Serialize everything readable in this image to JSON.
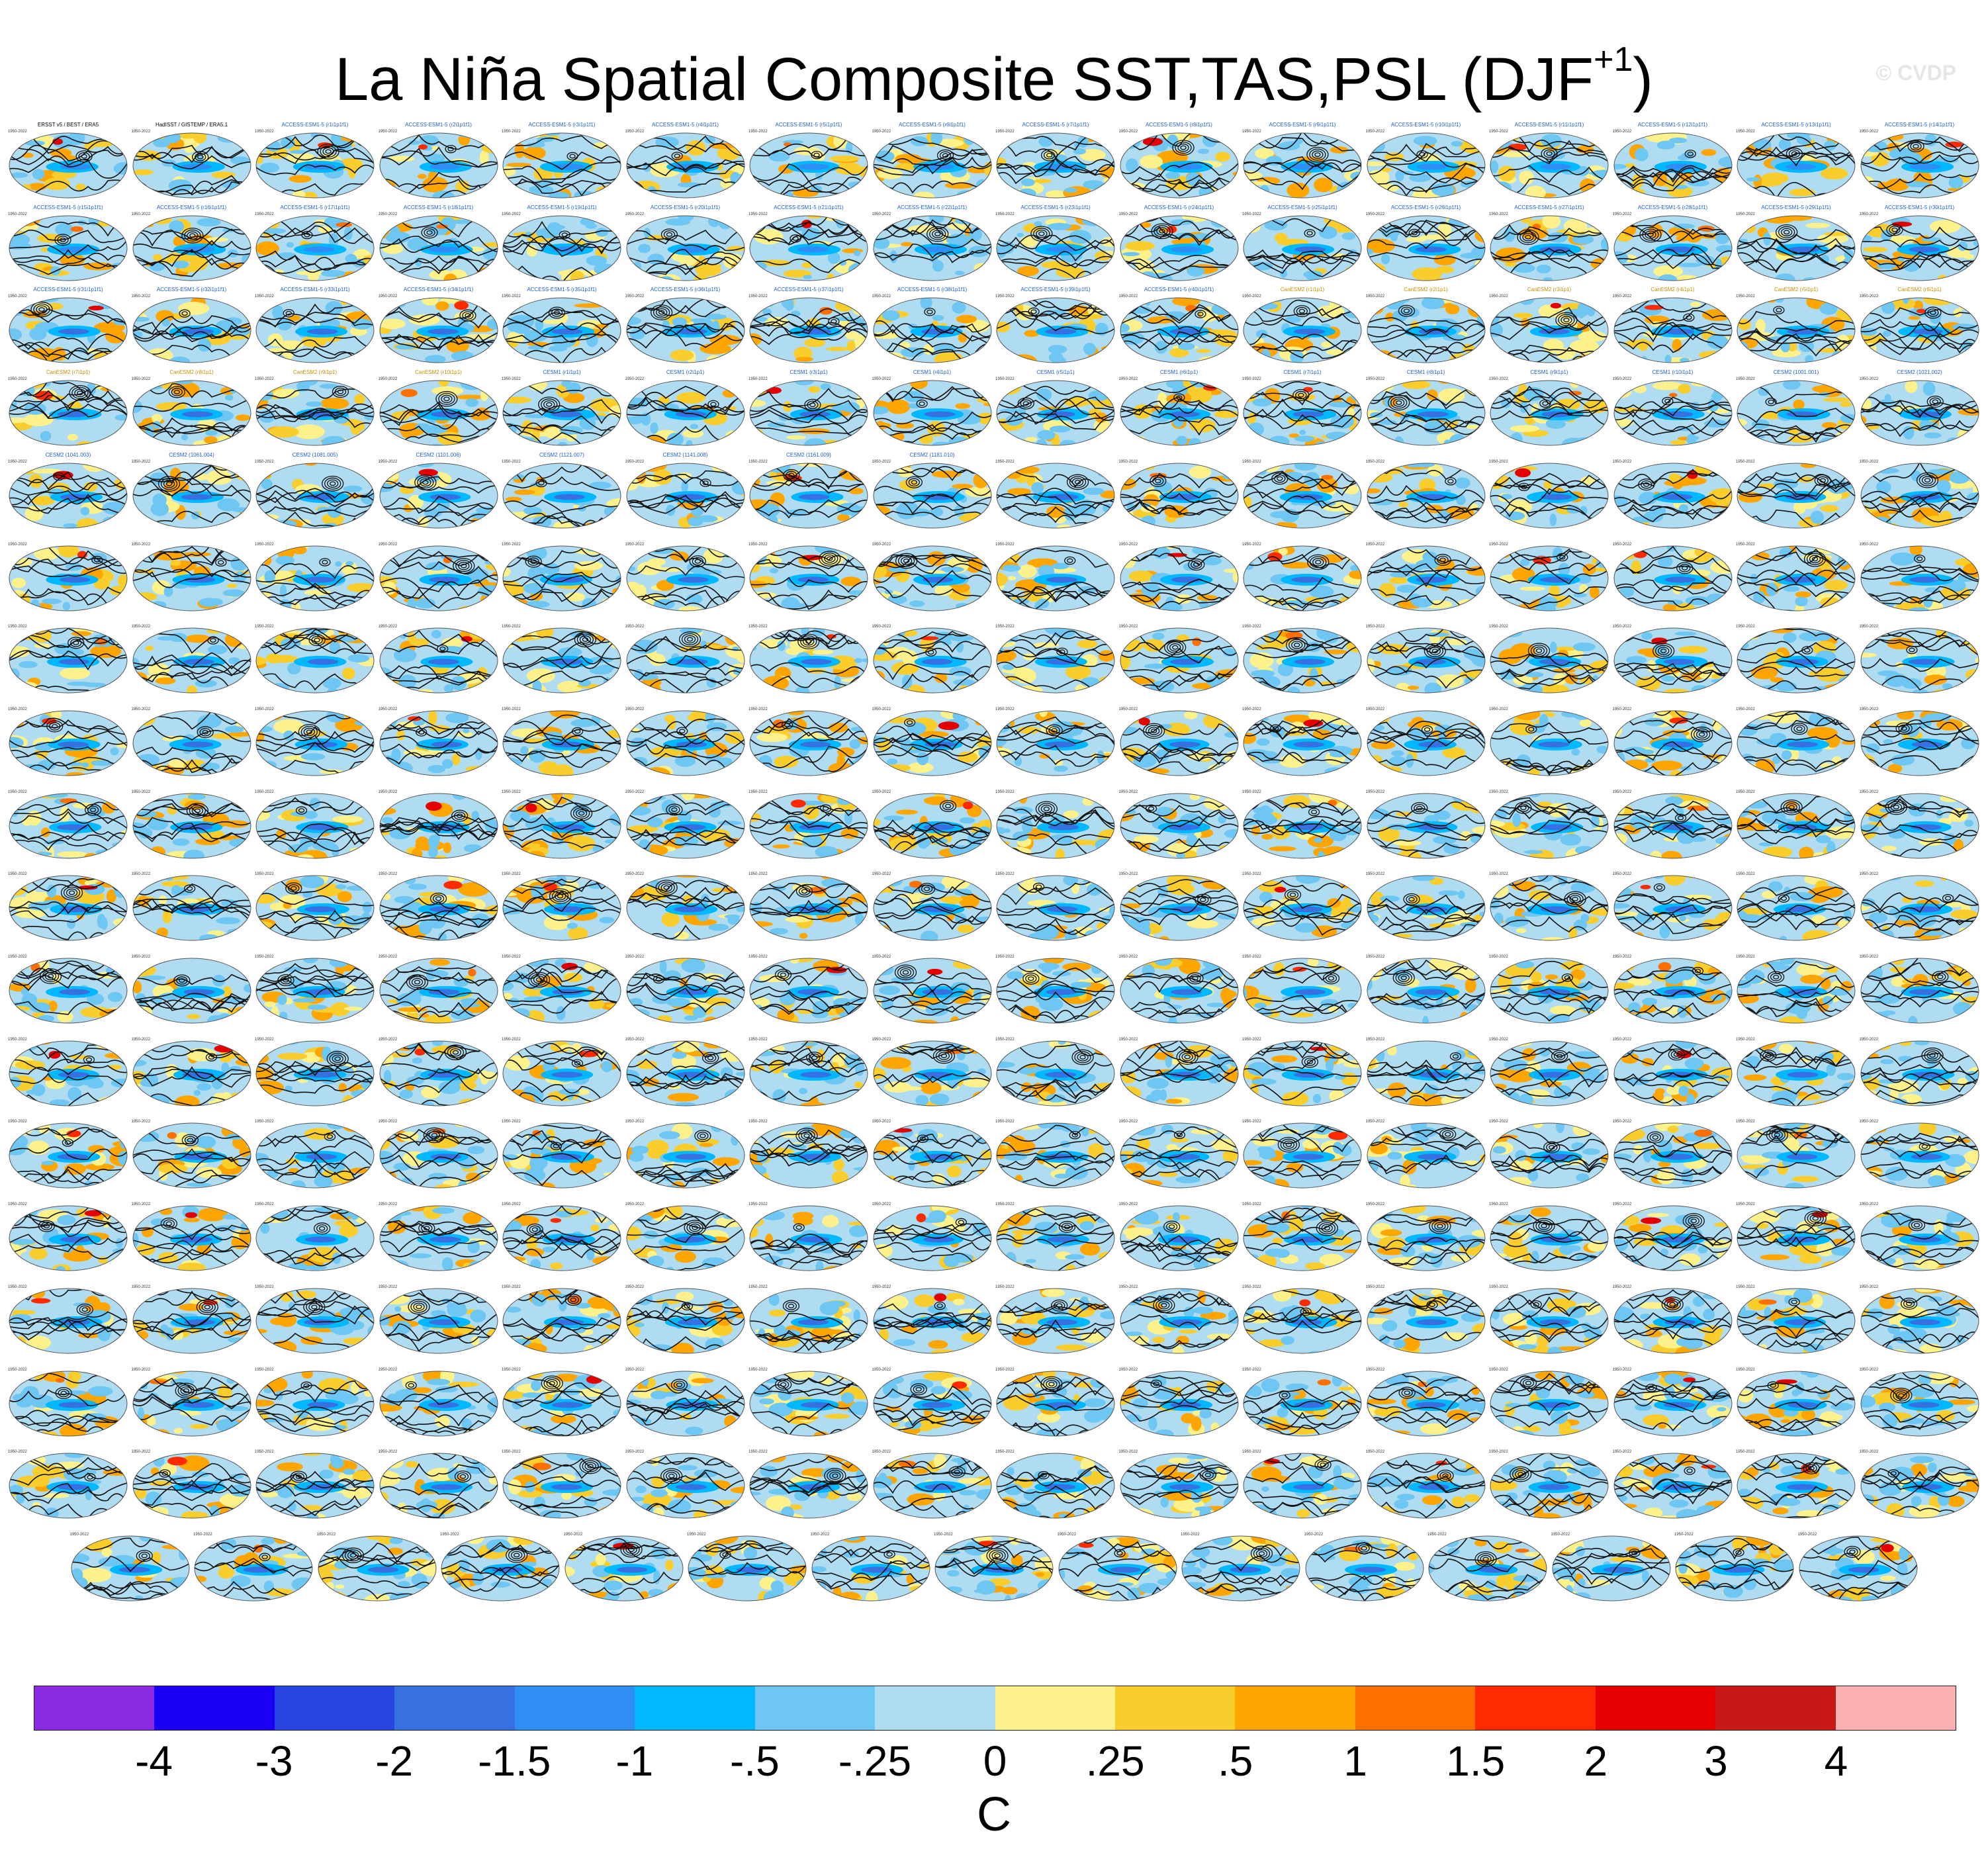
{
  "chart_data": {
    "type": "heatmap",
    "title": "La Niña Spatial Composite SST,TAS,PSL (DJF",
    "title_superscript": "+1",
    "title_suffix": ")",
    "watermark": "© CVDP",
    "variables": [
      "SST",
      "TAS",
      "PSL"
    ],
    "season": "DJF+1",
    "panel_rows": 18,
    "panels_per_full_row": 16,
    "last_row_panels": 15,
    "panel_year_range": "1950-2022",
    "panels": [
      "ERSST v5 / BEST / ERA5",
      "HadISST / GISTEMP / ERA5.1",
      "ACCESS-ESM1-5 (r1i1p1f1)",
      "ACCESS-ESM1-5 (r2i1p1f1)",
      "ACCESS-ESM1-5 (r3i1p1f1)",
      "ACCESS-ESM1-5 (r4i1p1f1)",
      "ACCESS-ESM1-5 (r5i1p1f1)",
      "ACCESS-ESM1-5 (r6i1p1f1)",
      "ACCESS-ESM1-5 (r7i1p1f1)",
      "ACCESS-ESM1-5 (r8i1p1f1)",
      "ACCESS-ESM1-5 (r9i1p1f1)",
      "ACCESS-ESM1-5 (r10i1p1f1)",
      "ACCESS-ESM1-5 (r11i1p1f1)",
      "ACCESS-ESM1-5 (r12i1p1f1)",
      "ACCESS-ESM1-5 (r13i1p1f1)",
      "ACCESS-ESM1-5 (r14i1p1f1)",
      "ACCESS-ESM1-5 (r15i1p1f1)",
      "ACCESS-ESM1-5 (r16i1p1f1)",
      "ACCESS-ESM1-5 (r17i1p1f1)",
      "ACCESS-ESM1-5 (r18i1p1f1)",
      "ACCESS-ESM1-5 (r19i1p1f1)",
      "ACCESS-ESM1-5 (r20i1p1f1)",
      "ACCESS-ESM1-5 (r21i1p1f1)",
      "ACCESS-ESM1-5 (r22i1p1f1)",
      "ACCESS-ESM1-5 (r23i1p1f1)",
      "ACCESS-ESM1-5 (r24i1p1f1)",
      "ACCESS-ESM1-5 (r25i1p1f1)",
      "ACCESS-ESM1-5 (r26i1p1f1)",
      "ACCESS-ESM1-5 (r27i1p1f1)",
      "ACCESS-ESM1-5 (r28i1p1f1)",
      "ACCESS-ESM1-5 (r29i1p1f1)",
      "ACCESS-ESM1-5 (r30i1p1f1)",
      "ACCESS-ESM1-5 (r31i1p1f1)",
      "ACCESS-ESM1-5 (r32i1p1f1)",
      "ACCESS-ESM1-5 (r33i1p1f1)",
      "ACCESS-ESM1-5 (r34i1p1f1)",
      "ACCESS-ESM1-5 (r35i1p1f1)",
      "ACCESS-ESM1-5 (r36i1p1f1)",
      "ACCESS-ESM1-5 (r37i1p1f1)",
      "ACCESS-ESM1-5 (r38i1p1f1)",
      "ACCESS-ESM1-5 (r39i1p1f1)",
      "ACCESS-ESM1-5 (r40i1p1f1)",
      "CanESM2 (r1i1p1)",
      "CanESM2 (r2i1p1)",
      "CanESM2 (r3i1p1)",
      "CanESM2 (r4i1p1)",
      "CanESM2 (r5i1p1)",
      "CanESM2 (r6i1p1)",
      "CanESM2 (r7i1p1)",
      "CanESM2 (r8i1p1)",
      "CanESM2 (r9i1p1)",
      "CanESM2 (r10i1p1)",
      "CESM1 (r1i1p1)",
      "CESM1 (r2i1p1)",
      "CESM1 (r3i1p1)",
      "CESM1 (r4i1p1)",
      "CESM1 (r5i1p1)",
      "CESM1 (r6i1p1)",
      "CESM1 (r7i1p1)",
      "CESM1 (r8i1p1)",
      "CESM1 (r9i1p1)",
      "CESM1 (r10i1p1)",
      "CESM2 (1001.001)",
      "CESM2 (1021.002)",
      "CESM2 (1041.003)",
      "CESM2 (1061.004)",
      "CESM2 (1081.005)",
      "CESM2 (1101.006)",
      "CESM2 (1121.007)",
      "CESM2 (1141.008)",
      "CESM2 (1161.009)",
      "CESM2 (1181.010)"
    ],
    "legend": {
      "label": "C",
      "colors": [
        "#8a2be2",
        "#1a00f5",
        "#2746e0",
        "#3770e0",
        "#2e8ef5",
        "#00b8ff",
        "#6ec6f2",
        "#b0dcf2",
        "#fcf18a",
        "#f8cd2c",
        "#ffa500",
        "#ff7000",
        "#ff2a00",
        "#e40000",
        "#c81818",
        "#fab0b0"
      ],
      "tick_labels": [
        "-4",
        "-3",
        "-2",
        "-1.5",
        "-1",
        "-.5",
        "-.25",
        "0",
        ".25",
        ".5",
        "1",
        "1.5",
        "2",
        "3",
        "4"
      ],
      "tick_values": [
        -4,
        -3,
        -2,
        -1.5,
        -1,
        -0.5,
        -0.25,
        0,
        0.25,
        0.5,
        1,
        1.5,
        2,
        3,
        4
      ]
    }
  }
}
